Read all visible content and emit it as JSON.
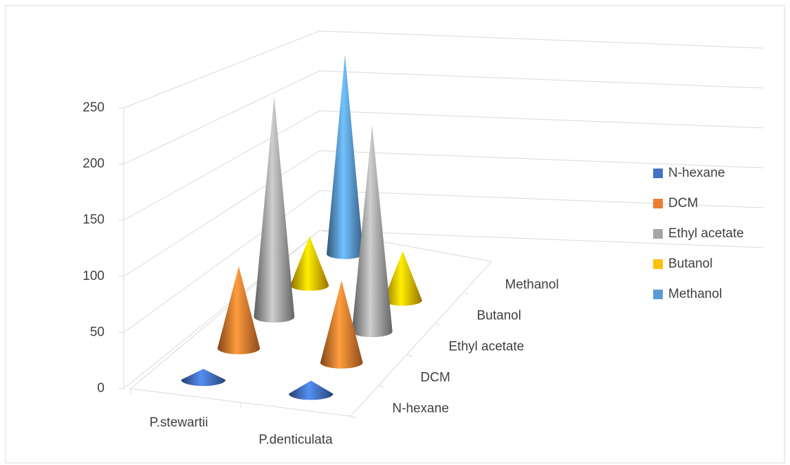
{
  "chart_data": {
    "type": "cone3d",
    "categories": [
      "P.stewartii",
      "P.denticulata"
    ],
    "series": [
      {
        "name": "N-hexane",
        "color": "#4472c4",
        "values": [
          10,
          12
        ]
      },
      {
        "name": "DCM",
        "color": "#ed7d31",
        "values": [
          80,
          80
        ]
      },
      {
        "name": "Ethyl acetate",
        "color": "#a5a5a5",
        "values": [
          230,
          215
        ]
      },
      {
        "name": "Butanol",
        "color": "#ffc000",
        "values": [
          55,
          55
        ]
      },
      {
        "name": "Methanol",
        "color": "#5b9bd5",
        "values": [
          240,
          0
        ]
      }
    ],
    "ylim": [
      0,
      250
    ],
    "yticks": [
      0,
      50,
      100,
      150,
      200,
      250
    ],
    "grid": true,
    "legend": "right"
  }
}
